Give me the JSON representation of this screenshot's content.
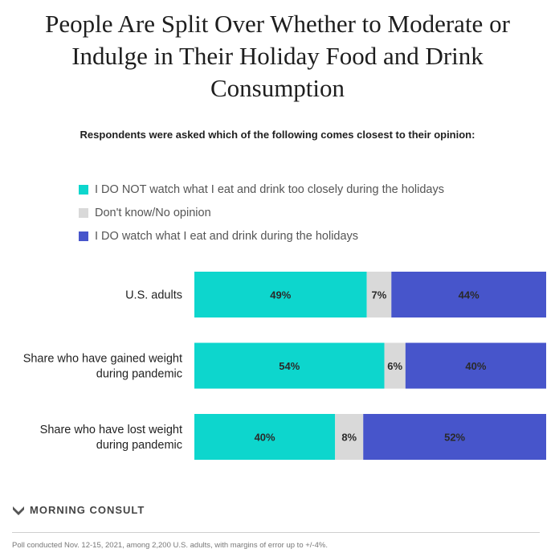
{
  "title": "People Are Split Over Whether to Moderate or Indulge in Their Holiday Food and Drink Consumption",
  "subtitle": "Respondents were asked which of the following comes closest to their opinion:",
  "colors": {
    "not_watch": "#0dd6cd",
    "dont_know": "#d9d9d9",
    "watch": "#4755cb"
  },
  "chart_data": {
    "type": "bar",
    "orientation": "horizontal",
    "stacked": true,
    "title": "People Are Split Over Whether to Moderate or Indulge in Their Holiday Food and Drink Consumption",
    "categories": [
      [
        "U.S. adults"
      ],
      [
        "Share who have gained weight",
        "during pandemic"
      ],
      [
        "Share who have lost weight",
        "during pandemic"
      ]
    ],
    "series": [
      {
        "name": "I DO NOT watch what I eat and drink too closely during the holidays",
        "color": "#0dd6cd",
        "values": [
          49,
          54,
          40
        ]
      },
      {
        "name": "Don't know/No opinion",
        "color": "#d9d9d9",
        "values": [
          7,
          6,
          8
        ]
      },
      {
        "name": "I DO watch what I eat and drink during the holidays",
        "color": "#4755cb",
        "values": [
          44,
          40,
          52
        ]
      }
    ],
    "unit": "%",
    "xlim": [
      0,
      100
    ],
    "legend": "top-left"
  },
  "brand": "MORNING CONSULT",
  "footnote": "Poll conducted Nov. 12-15, 2021, among 2,200 U.S. adults, with margins of error up to +/-4%."
}
